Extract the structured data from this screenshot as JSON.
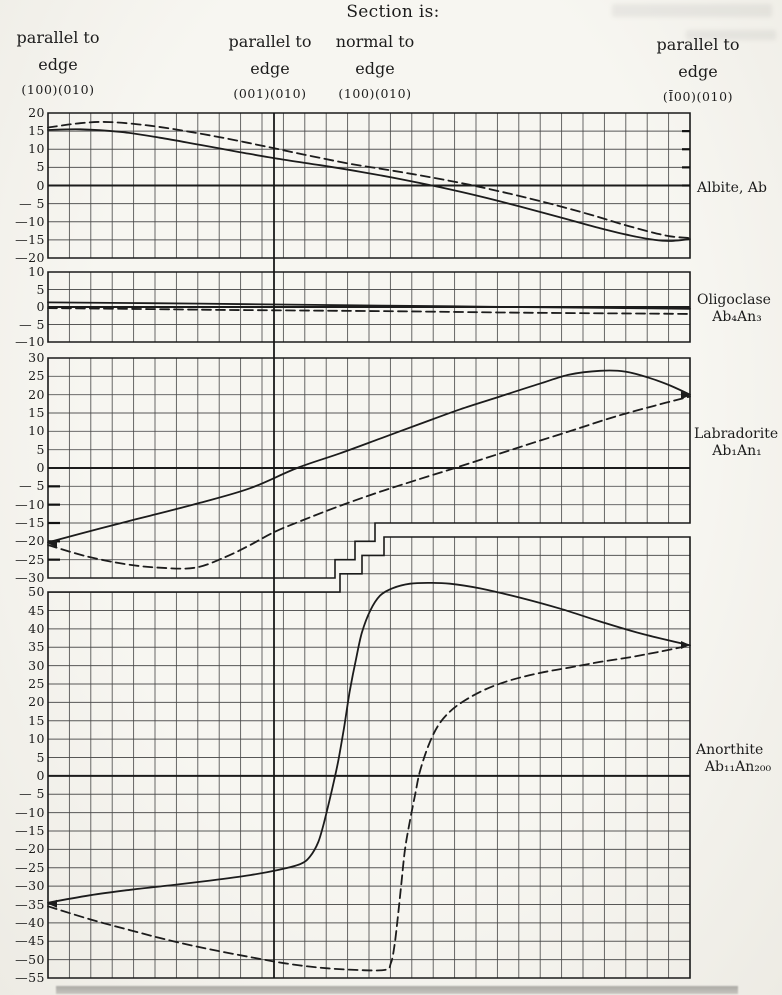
{
  "page": {
    "title": "Section is:",
    "section_columns": [
      {
        "orientation": "parallel to",
        "target": "edge",
        "miller": "(100)(010)"
      },
      {
        "orientation": "parallel to",
        "target": "edge",
        "miller": "(001)(010)"
      },
      {
        "orientation": "normal to",
        "target": "edge",
        "miller": "(100)(010)"
      },
      {
        "orientation": "parallel to",
        "target": "edge",
        "miller": "(Ī00)(010)"
      }
    ]
  },
  "minerals": [
    {
      "name": "Albite, Ab",
      "formula": ""
    },
    {
      "name": "Oligoclase",
      "formula": "Ab₄An₃"
    },
    {
      "name": "Labradorite",
      "formula": "Ab₁An₁"
    },
    {
      "name": "Anorthite",
      "formula": "Ab₁₁An₂₀₀"
    }
  ],
  "style": {
    "paper": "#f5f4f0",
    "ink": "#1c1c1c",
    "grid": "#4a4a4a"
  },
  "chart_data": [
    {
      "type": "line",
      "label": "Albite, Ab",
      "ylim": [
        -20,
        20
      ],
      "yticks": [
        20,
        15,
        10,
        5,
        0,
        -5,
        -10,
        -15,
        -20
      ],
      "ytick_labels": [
        "20",
        "15",
        "10",
        "5",
        "0",
        "— 5",
        "—10",
        "—15",
        "—20"
      ],
      "xlabel": "",
      "ylabel": "",
      "x_unit": "fraction of chart width; no numeric x-scale printed (x spans the four section orientations)",
      "grid": "on",
      "series": [
        {
          "name": "solid",
          "style": "solid",
          "points": [
            [
              0,
              15.3
            ],
            [
              0.05,
              15.5
            ],
            [
              0.112,
              14.8
            ],
            [
              0.174,
              13.2
            ],
            [
              0.237,
              11.2
            ],
            [
              0.299,
              9.2
            ],
            [
              0.361,
              7.3
            ],
            [
              0.424,
              5.6
            ],
            [
              0.486,
              3.8
            ],
            [
              0.548,
              1.8
            ],
            [
              0.611,
              -0.5
            ],
            [
              0.673,
              -3
            ],
            [
              0.735,
              -5.8
            ],
            [
              0.798,
              -8.8
            ],
            [
              0.86,
              -11.8
            ],
            [
              0.907,
              -13.8
            ],
            [
              0.945,
              -15
            ],
            [
              0.969,
              -15.3
            ],
            [
              1,
              -14.8
            ]
          ]
        },
        {
          "name": "dashed",
          "style": "dashed",
          "points": [
            [
              0,
              16
            ],
            [
              0.05,
              17.2
            ],
            [
              0.097,
              17.5
            ],
            [
              0.159,
              16.5
            ],
            [
              0.221,
              14.8
            ],
            [
              0.283,
              12.8
            ],
            [
              0.346,
              10.5
            ],
            [
              0.408,
              8.2
            ],
            [
              0.47,
              6
            ],
            [
              0.533,
              4.2
            ],
            [
              0.595,
              2.3
            ],
            [
              0.657,
              0.2
            ],
            [
              0.72,
              -2.3
            ],
            [
              0.782,
              -5
            ],
            [
              0.844,
              -8
            ],
            [
              0.891,
              -10.5
            ],
            [
              0.938,
              -12.8
            ],
            [
              0.969,
              -14
            ],
            [
              1,
              -14.5
            ]
          ]
        }
      ]
    },
    {
      "type": "line",
      "label": "Oligoclase Ab₄An₃",
      "ylim": [
        -10,
        10
      ],
      "yticks": [
        10,
        5,
        0,
        -5,
        -10
      ],
      "ytick_labels": [
        "10",
        "5",
        "0",
        "— 5",
        "—10"
      ],
      "xlabel": "",
      "ylabel": "",
      "x_unit": "fraction of chart width; no numeric x-scale printed",
      "grid": "on",
      "series": [
        {
          "name": "solid",
          "style": "solid",
          "points": [
            [
              0,
              1.3
            ],
            [
              0.16,
              1.1
            ],
            [
              0.31,
              0.8
            ],
            [
              0.47,
              0.5
            ],
            [
              0.63,
              0.2
            ],
            [
              0.78,
              -0.1
            ],
            [
              0.94,
              -0.4
            ],
            [
              1,
              -0.5
            ]
          ]
        },
        {
          "name": "dashed",
          "style": "dashed",
          "points": [
            [
              0,
              -0.3
            ],
            [
              0.16,
              -0.6
            ],
            [
              0.31,
              -0.9
            ],
            [
              0.47,
              -1.1
            ],
            [
              0.63,
              -1.4
            ],
            [
              0.78,
              -1.7
            ],
            [
              0.94,
              -1.9
            ],
            [
              1,
              -2
            ]
          ]
        }
      ]
    },
    {
      "type": "line",
      "label": "Labradorite Ab₁An₁",
      "ylim": [
        -30,
        30
      ],
      "yticks": [
        30,
        25,
        20,
        15,
        10,
        5,
        0,
        -5,
        -10,
        -15,
        -20,
        -25,
        -30
      ],
      "ytick_labels": [
        "30",
        "25",
        "20",
        "15",
        "10",
        "5",
        "0",
        "— 5",
        "—10",
        "—15",
        "—20",
        "—25",
        "—30"
      ],
      "xlabel": "",
      "ylabel": "",
      "x_unit": "fraction of chart width; no numeric x-scale printed",
      "grid": "on (grid region stepped at lower middle)",
      "series": [
        {
          "name": "solid",
          "style": "solid",
          "points": [
            [
              0,
              -20.3
            ],
            [
              0.081,
              -16.5
            ],
            [
              0.159,
              -13
            ],
            [
              0.237,
              -9.5
            ],
            [
              0.315,
              -5.5
            ],
            [
              0.388,
              0
            ],
            [
              0.455,
              4
            ],
            [
              0.517,
              8
            ],
            [
              0.579,
              12
            ],
            [
              0.642,
              16
            ],
            [
              0.704,
              19.5
            ],
            [
              0.766,
              23
            ],
            [
              0.813,
              25.5
            ],
            [
              0.86,
              26.5
            ],
            [
              0.899,
              26.3
            ],
            [
              0.938,
              24.5
            ],
            [
              0.969,
              22.5
            ],
            [
              1,
              20
            ]
          ]
        },
        {
          "name": "dashed",
          "style": "dashed",
          "points": [
            [
              0,
              -21
            ],
            [
              0.058,
              -24
            ],
            [
              0.12,
              -26.2
            ],
            [
              0.174,
              -27.2
            ],
            [
              0.229,
              -27.2
            ],
            [
              0.276,
              -24.3
            ],
            [
              0.315,
              -21
            ],
            [
              0.352,
              -17.5
            ],
            [
              0.393,
              -14.5
            ],
            [
              0.455,
              -10.3
            ],
            [
              0.517,
              -6.5
            ],
            [
              0.579,
              -3
            ],
            [
              0.634,
              0
            ],
            [
              0.696,
              3.5
            ],
            [
              0.758,
              7
            ],
            [
              0.821,
              10.5
            ],
            [
              0.883,
              14
            ],
            [
              0.945,
              17
            ],
            [
              1,
              19.5
            ]
          ]
        }
      ]
    },
    {
      "type": "line",
      "label": "Anorthite Ab₁₁An₂₀₀",
      "ylim": [
        -55,
        50
      ],
      "yticks": [
        50,
        45,
        40,
        35,
        30,
        25,
        20,
        15,
        10,
        5,
        0,
        -5,
        -10,
        -15,
        -20,
        -25,
        -30,
        -35,
        -40,
        -45,
        -50,
        -55
      ],
      "ytick_labels": [
        "50",
        "45",
        "40",
        "35",
        "30",
        "25",
        "20",
        "15",
        "10",
        "5",
        "0",
        "— 5",
        "—10",
        "—15",
        "—20",
        "—25",
        "—30",
        "—35",
        "—40",
        "—45",
        "—50",
        "—55"
      ],
      "xlabel": "",
      "ylabel": "",
      "x_unit": "fraction of chart width; no numeric x-scale printed",
      "grid": "on (grid region stepped upward above +50 over right half)",
      "series": [
        {
          "name": "solid",
          "style": "solid",
          "points": [
            [
              0,
              -34.5
            ],
            [
              0.065,
              -32.5
            ],
            [
              0.128,
              -31
            ],
            [
              0.19,
              -29.8
            ],
            [
              0.252,
              -28.5
            ],
            [
              0.315,
              -27
            ],
            [
              0.361,
              -25.5
            ],
            [
              0.393,
              -24
            ],
            [
              0.408,
              -22
            ],
            [
              0.421,
              -18
            ],
            [
              0.431,
              -12
            ],
            [
              0.442,
              -4
            ],
            [
              0.452,
              4
            ],
            [
              0.461,
              13
            ],
            [
              0.47,
              23
            ],
            [
              0.48,
              32
            ],
            [
              0.489,
              39
            ],
            [
              0.502,
              45
            ],
            [
              0.517,
              49
            ],
            [
              0.536,
              51
            ],
            [
              0.564,
              52.3
            ],
            [
              0.595,
              52.5
            ],
            [
              0.626,
              52.3
            ],
            [
              0.673,
              51
            ],
            [
              0.735,
              48.5
            ],
            [
              0.798,
              45.5
            ],
            [
              0.86,
              42
            ],
            [
              0.922,
              38.8
            ],
            [
              1,
              35.5
            ]
          ]
        },
        {
          "name": "dashed",
          "style": "dashed",
          "points": [
            [
              0,
              -35.5
            ],
            [
              0.065,
              -39
            ],
            [
              0.128,
              -42
            ],
            [
              0.19,
              -44.8
            ],
            [
              0.252,
              -47.2
            ],
            [
              0.315,
              -49.3
            ],
            [
              0.369,
              -51
            ],
            [
              0.424,
              -52.2
            ],
            [
              0.478,
              -52.8
            ],
            [
              0.525,
              -52.8
            ],
            [
              0.534,
              -51
            ],
            [
              0.539,
              -47
            ],
            [
              0.544,
              -40
            ],
            [
              0.55,
              -30
            ],
            [
              0.556,
              -20
            ],
            [
              0.564,
              -12
            ],
            [
              0.572,
              -5
            ],
            [
              0.579,
              1
            ],
            [
              0.592,
              8
            ],
            [
              0.607,
              13.5
            ],
            [
              0.626,
              17.5
            ],
            [
              0.649,
              20.5
            ],
            [
              0.681,
              23.5
            ],
            [
              0.72,
              26
            ],
            [
              0.766,
              28
            ],
            [
              0.813,
              29.5
            ],
            [
              0.86,
              31
            ],
            [
              0.907,
              32.3
            ],
            [
              0.953,
              33.8
            ],
            [
              1,
              35.5
            ]
          ]
        }
      ]
    }
  ]
}
